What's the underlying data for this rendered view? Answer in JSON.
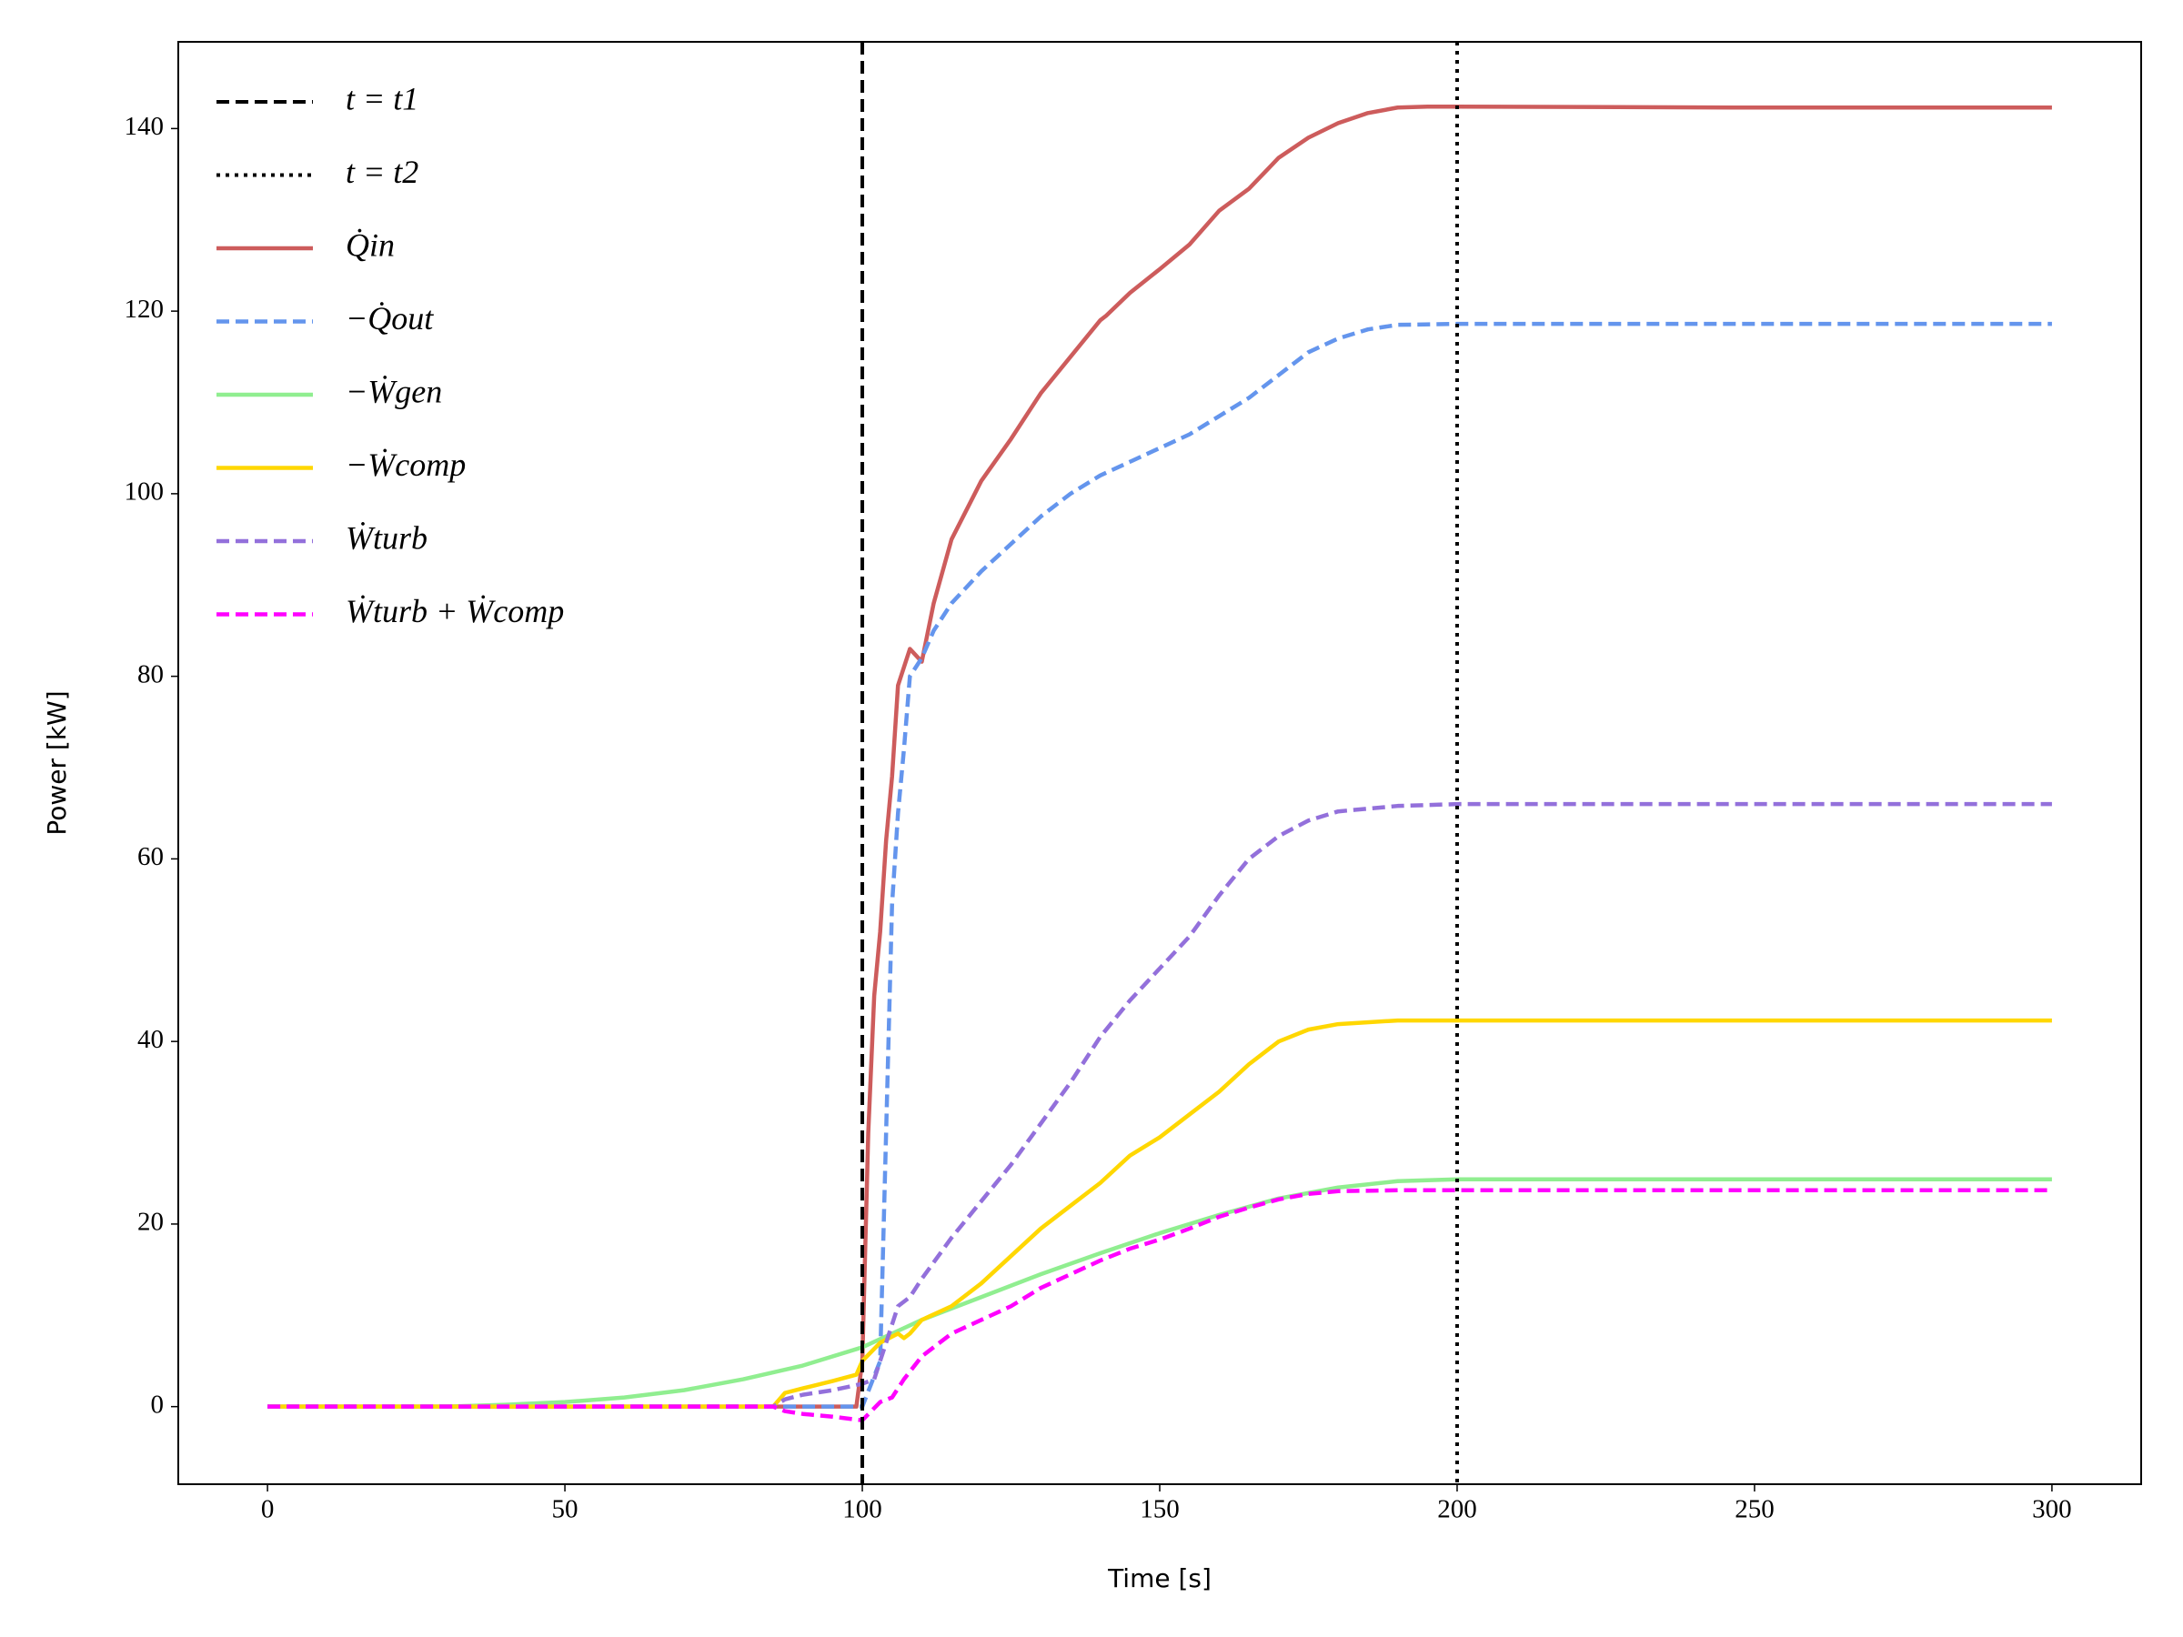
{
  "chart_data": {
    "type": "line",
    "xlabel": "Time [s]",
    "ylabel": "Power [kW]",
    "xlim": [
      -15,
      315
    ],
    "ylim": [
      -8.5,
      149.5
    ],
    "xticks": [
      0,
      50,
      100,
      150,
      200,
      250,
      300
    ],
    "yticks": [
      0,
      20,
      40,
      60,
      80,
      100,
      120,
      140
    ],
    "legend": "upper left",
    "vlines": [
      {
        "name": "t = t1",
        "x": 100,
        "color": "#000000",
        "style": "dashed"
      },
      {
        "name": "t = t2",
        "x": 200,
        "color": "#000000",
        "style": "dotted"
      }
    ],
    "series": [
      {
        "name": "Q̇in",
        "color": "#cd5c5c",
        "style": "solid",
        "x": [
          0,
          50,
          99,
          100,
          101,
          102,
          103,
          104,
          105,
          106,
          108,
          110,
          112,
          115,
          120,
          125,
          130,
          135,
          140,
          141,
          145,
          150,
          155,
          160,
          165,
          170,
          175,
          180,
          185,
          190,
          195,
          200,
          250,
          300
        ],
        "values": [
          0,
          0,
          0,
          5,
          30,
          45,
          52,
          62,
          69,
          79,
          83,
          81.6,
          88,
          95,
          101.4,
          106,
          111,
          115,
          119,
          119.5,
          122,
          124.6,
          127.3,
          131,
          133.4,
          136.8,
          139,
          140.6,
          141.7,
          142.3,
          142.4,
          142.4,
          142.3,
          142.3
        ]
      },
      {
        "name": "−Q̇out",
        "color": "#6495ed",
        "style": "dashed",
        "x": [
          0,
          50,
          87,
          100,
          103,
          104,
          105,
          106,
          107,
          108,
          110,
          112,
          115,
          120,
          125,
          130,
          135,
          140,
          145,
          150,
          155,
          160,
          165,
          170,
          175,
          180,
          185,
          190,
          200,
          250,
          300
        ],
        "values": [
          0,
          0,
          0,
          0,
          5,
          30,
          55,
          65,
          72,
          80,
          82,
          85,
          88,
          91.5,
          94.5,
          97.5,
          100,
          102,
          103.5,
          105,
          106.5,
          108.5,
          110.5,
          113,
          115.5,
          117,
          118,
          118.5,
          118.6,
          118.6,
          118.6
        ]
      },
      {
        "name": "−Ẇgen",
        "color": "#90ee90",
        "style": "solid",
        "x": [
          0,
          30,
          40,
          50,
          60,
          70,
          80,
          90,
          100,
          105,
          110,
          120,
          130,
          140,
          150,
          160,
          170,
          180,
          190,
          200,
          250,
          300
        ],
        "values": [
          0,
          0,
          0.2,
          0.5,
          1,
          1.8,
          3,
          4.5,
          6.5,
          8,
          9.5,
          12,
          14.5,
          16.8,
          19,
          21,
          22.8,
          24,
          24.7,
          24.9,
          24.9,
          24.9
        ]
      },
      {
        "name": "−Ẇcomp",
        "color": "#ffd700",
        "style": "solid",
        "x": [
          0,
          50,
          85,
          87,
          90,
          95,
          99,
          100,
          103,
          106,
          107,
          108,
          110,
          115,
          120,
          125,
          130,
          135,
          140,
          145,
          150,
          155,
          160,
          165,
          170,
          175,
          180,
          190,
          200,
          250,
          300
        ],
        "values": [
          0,
          0,
          0,
          1.5,
          2,
          2.8,
          3.5,
          5,
          7,
          8,
          7.5,
          8,
          9.5,
          11,
          13.5,
          16.5,
          19.5,
          22,
          24.5,
          27.5,
          29.5,
          32,
          34.5,
          37.5,
          40,
          41.3,
          41.9,
          42.3,
          42.3,
          42.3,
          42.3
        ]
      },
      {
        "name": "Ẇturb",
        "color": "#9370db",
        "style": "dashed",
        "x": [
          0,
          50,
          85,
          87,
          90,
          95,
          100,
          102,
          104,
          106,
          108,
          110,
          115,
          120,
          125,
          130,
          135,
          140,
          145,
          150,
          155,
          160,
          165,
          170,
          175,
          180,
          190,
          200,
          250,
          300
        ],
        "values": [
          0,
          0,
          0,
          0.8,
          1.3,
          1.8,
          2.5,
          3,
          7,
          11,
          12,
          14,
          18.5,
          22.5,
          26.5,
          31,
          35.5,
          40.5,
          44.5,
          48,
          51.5,
          56,
          60,
          62.5,
          64.2,
          65.2,
          65.8,
          66,
          66,
          66
        ]
      },
      {
        "name": "Ẇturb + Ẇcomp",
        "color": "#ff00ff",
        "style": "dashed",
        "x": [
          0,
          50,
          85,
          87,
          90,
          95,
          100,
          103,
          105,
          107,
          110,
          115,
          120,
          125,
          130,
          135,
          140,
          145,
          150,
          155,
          160,
          165,
          170,
          175,
          180,
          190,
          200,
          250,
          300
        ],
        "values": [
          0,
          0,
          0,
          -0.5,
          -0.8,
          -1.1,
          -1.5,
          0.5,
          1,
          3,
          5.5,
          8,
          9.5,
          11,
          13,
          14.5,
          16,
          17.3,
          18.3,
          19.5,
          20.8,
          21.8,
          22.7,
          23.3,
          23.6,
          23.7,
          23.7,
          23.7,
          23.7
        ]
      }
    ]
  }
}
